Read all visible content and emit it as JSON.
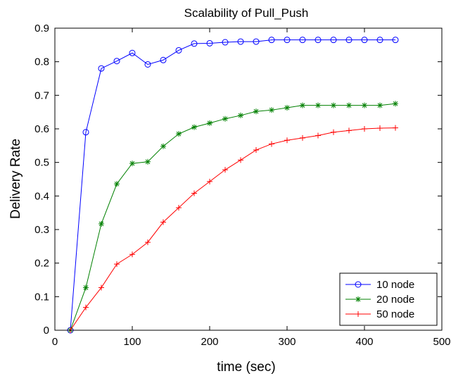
{
  "chart_data": {
    "type": "line",
    "title": "Scalability of Pull_Push",
    "xlabel": "time (sec)",
    "ylabel": "Delivery Rate",
    "xlim": [
      0,
      500
    ],
    "ylim": [
      0,
      0.9
    ],
    "x_ticks": [
      "0",
      "100",
      "200",
      "300",
      "400",
      "500"
    ],
    "y_ticks": [
      "0",
      "0.1",
      "0.2",
      "0.3",
      "0.4",
      "0.5",
      "0.6",
      "0.7",
      "0.8",
      "0.9"
    ],
    "grid": false,
    "legend_position": "bottom-right",
    "x": [
      20,
      40,
      60,
      80,
      100,
      120,
      140,
      160,
      180,
      200,
      220,
      240,
      260,
      280,
      300,
      320,
      340,
      360,
      380,
      400,
      420,
      440
    ],
    "series": [
      {
        "name": "10 node",
        "color": "#0000ff",
        "marker": "circle",
        "values": [
          0,
          0.59,
          0.78,
          0.802,
          0.826,
          0.792,
          0.805,
          0.834,
          0.854,
          0.855,
          0.858,
          0.86,
          0.86,
          0.865,
          0.865,
          0.865,
          0.865,
          0.865,
          0.865,
          0.865,
          0.865,
          0.865
        ]
      },
      {
        "name": "20 node",
        "color": "#008000",
        "marker": "asterisk",
        "values": [
          0,
          0.127,
          0.317,
          0.436,
          0.497,
          0.502,
          0.548,
          0.585,
          0.605,
          0.617,
          0.63,
          0.64,
          0.652,
          0.656,
          0.663,
          0.67,
          0.67,
          0.67,
          0.67,
          0.67,
          0.67,
          0.675
        ]
      },
      {
        "name": "50 node",
        "color": "#ff0000",
        "marker": "plus",
        "values": [
          0,
          0.068,
          0.127,
          0.197,
          0.226,
          0.262,
          0.322,
          0.365,
          0.408,
          0.443,
          0.478,
          0.507,
          0.537,
          0.555,
          0.566,
          0.573,
          0.58,
          0.59,
          0.595,
          0.6,
          0.602,
          0.603
        ]
      }
    ]
  }
}
